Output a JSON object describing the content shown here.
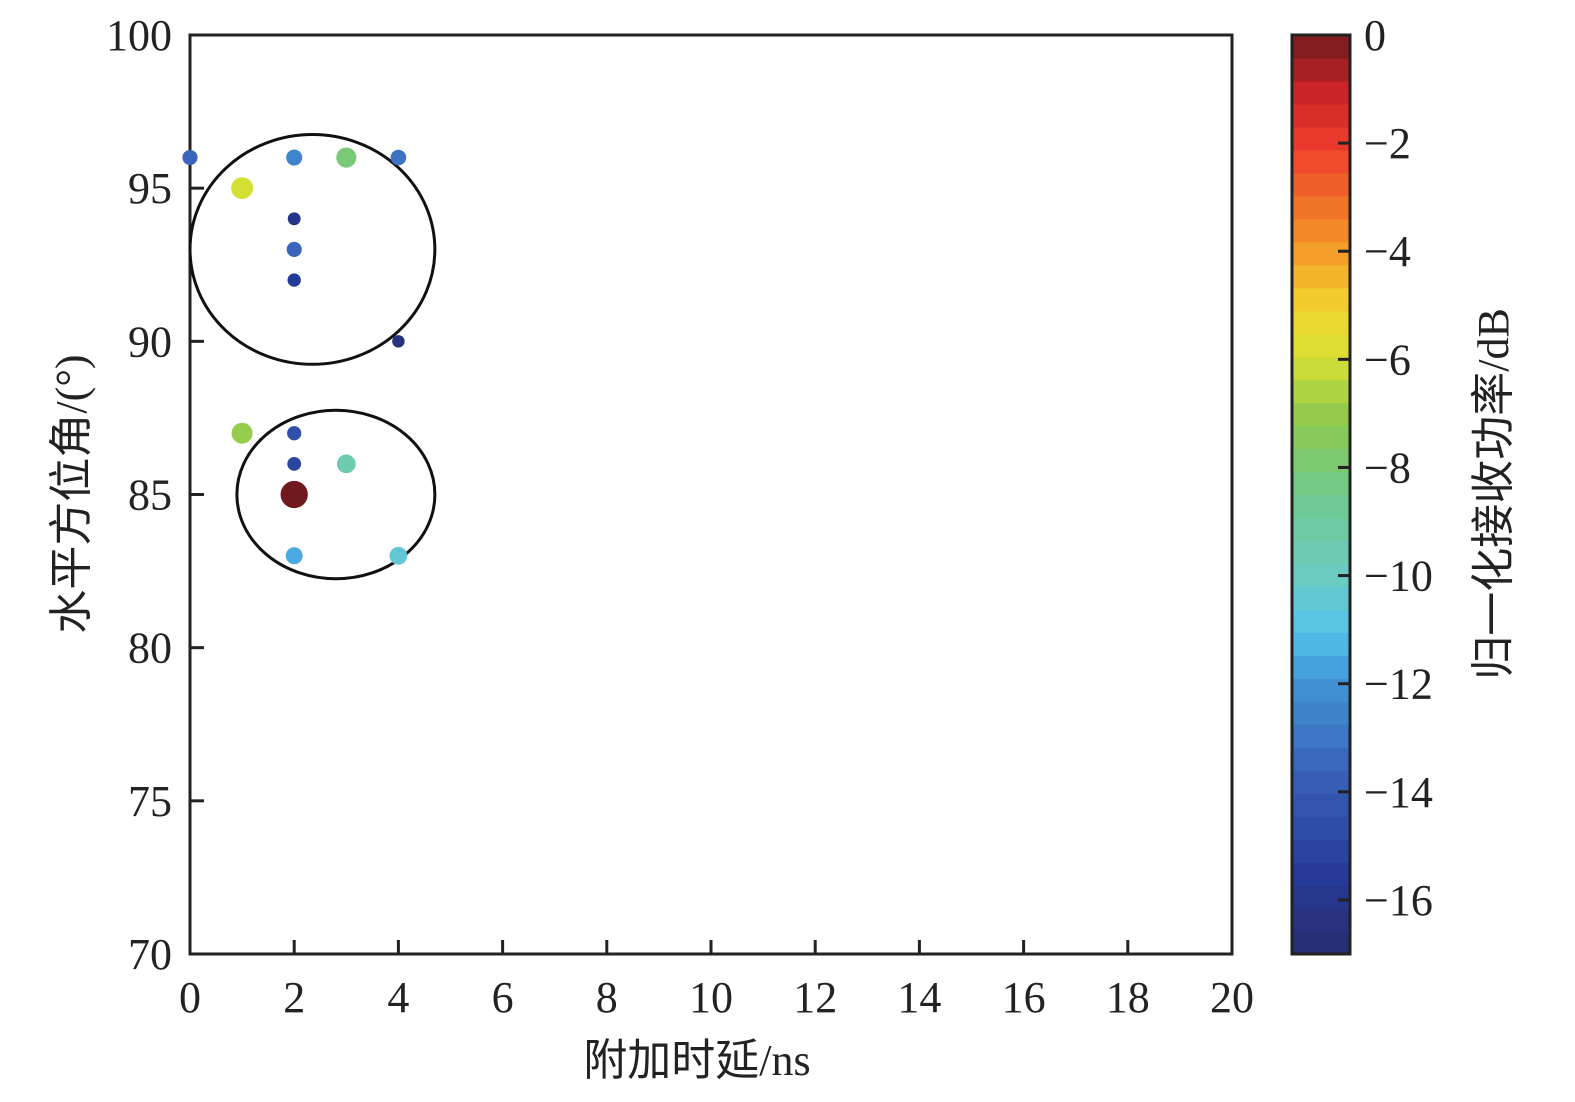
{
  "chart_data": {
    "type": "scatter",
    "xlabel": "附加时延/ns",
    "ylabel": "水平方位角/(°)",
    "xlim": [
      0,
      20
    ],
    "ylim": [
      70,
      100
    ],
    "x_ticks": [
      0,
      2,
      4,
      6,
      8,
      10,
      12,
      14,
      16,
      18,
      20
    ],
    "x_tick_labels": [
      "0",
      "2",
      "4",
      "6",
      "8",
      "10",
      "12",
      "14",
      "16",
      "18",
      "20"
    ],
    "y_ticks": [
      70,
      75,
      80,
      85,
      90,
      95,
      100
    ],
    "y_tick_labels": [
      "70",
      "75",
      "80",
      "85",
      "90",
      "95",
      "100"
    ],
    "grid": false,
    "colorbar": {
      "label": "归一化接收功率/dB",
      "range": [
        -17,
        0
      ],
      "ticks": [
        0,
        -2,
        -4,
        -6,
        -8,
        -10,
        -12,
        -14,
        -16
      ],
      "tick_labels": [
        "0",
        "−2",
        "−4",
        "−6",
        "−8",
        "−10",
        "−12",
        "−14",
        "−16"
      ],
      "colormap": "jet"
    },
    "points": [
      {
        "x": 0,
        "y": 96,
        "power_db": -13.5
      },
      {
        "x": 1,
        "y": 95,
        "power_db": -6.0
      },
      {
        "x": 1,
        "y": 87,
        "power_db": -7.0
      },
      {
        "x": 2,
        "y": 96,
        "power_db": -12.5
      },
      {
        "x": 2,
        "y": 94,
        "power_db": -16.0
      },
      {
        "x": 2,
        "y": 93,
        "power_db": -13.5
      },
      {
        "x": 2,
        "y": 92,
        "power_db": -15.5
      },
      {
        "x": 2,
        "y": 87,
        "power_db": -14.5
      },
      {
        "x": 2,
        "y": 86,
        "power_db": -15.0
      },
      {
        "x": 2,
        "y": 85,
        "power_db": 0
      },
      {
        "x": 2,
        "y": 83,
        "power_db": -11.5
      },
      {
        "x": 3,
        "y": 96,
        "power_db": -8.0
      },
      {
        "x": 3,
        "y": 86,
        "power_db": -9.5
      },
      {
        "x": 4,
        "y": 96,
        "power_db": -13.0
      },
      {
        "x": 4,
        "y": 90,
        "power_db": -16.5
      },
      {
        "x": 4,
        "y": 83,
        "power_db": -10.5
      }
    ],
    "annotations": [
      {
        "shape": "ellipse",
        "center": [
          2.35,
          93
        ],
        "radius_x": 2.35,
        "radius_y": 3.75
      },
      {
        "shape": "ellipse",
        "center": [
          2.8,
          85
        ],
        "radius_x": 1.9,
        "radius_y": 2.75
      }
    ]
  }
}
